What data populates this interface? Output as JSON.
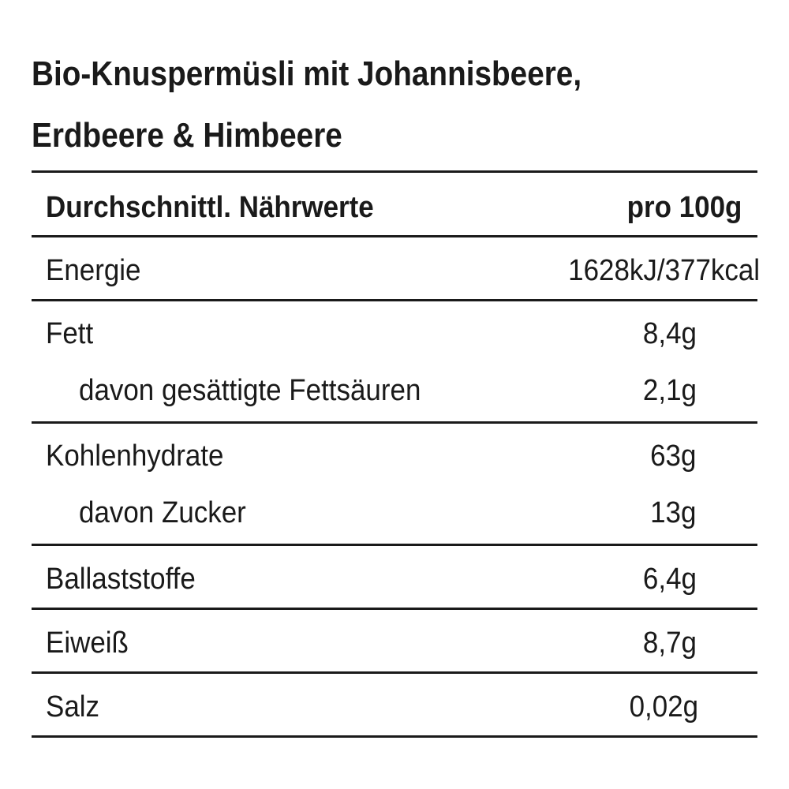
{
  "title": [
    "Bio-Knuspermüsli mit Johannisbeere,",
    "Erdbeere & Himbeere"
  ],
  "table": {
    "header": {
      "label": "Durchschnittl. Nährwerte",
      "value": "pro 100g"
    },
    "sections": [
      {
        "label": "Energie",
        "value": "1628kJ/377kcal",
        "sub": []
      },
      {
        "label": "Fett",
        "value": "8,4g",
        "sub": [
          {
            "label": "davon gesättigte Fettsäuren",
            "value": "2,1g"
          }
        ]
      },
      {
        "label": "Kohlenhydrate",
        "value": "63g",
        "sub": [
          {
            "label": "davon Zucker",
            "value": "13g"
          }
        ]
      },
      {
        "label": "Ballaststoffe",
        "value": "6,4g",
        "sub": []
      },
      {
        "label": "Eiweiß",
        "value": "8,7g",
        "sub": []
      },
      {
        "label": "Salz",
        "value": "0,02g",
        "sub": []
      }
    ]
  }
}
